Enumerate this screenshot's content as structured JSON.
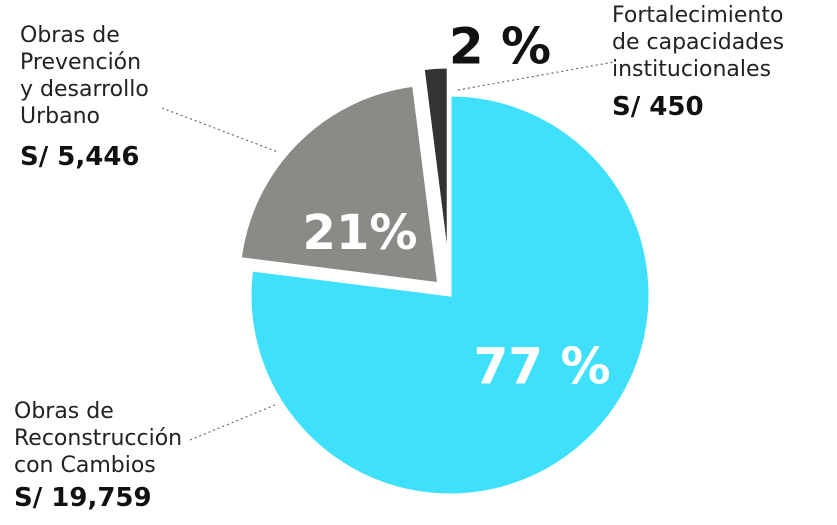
{
  "chart_data": {
    "type": "pie",
    "categories": [
      "Obras de\nReconstrucción\ncon Cambios",
      "Obras de\nPrevención\ny desarrollo\nUrbano",
      "Fortalecimiento\nde capacidades\ninstitucionales"
    ],
    "values": [
      77,
      21,
      2
    ],
    "value_labels": [
      "77 %",
      "21%",
      "2 %"
    ],
    "amounts": [
      "S/ 19,759",
      "S/ 5,446",
      "S/ 450"
    ],
    "colors": [
      "#3fe0fb",
      "#8a8a86",
      "#333333"
    ]
  }
}
